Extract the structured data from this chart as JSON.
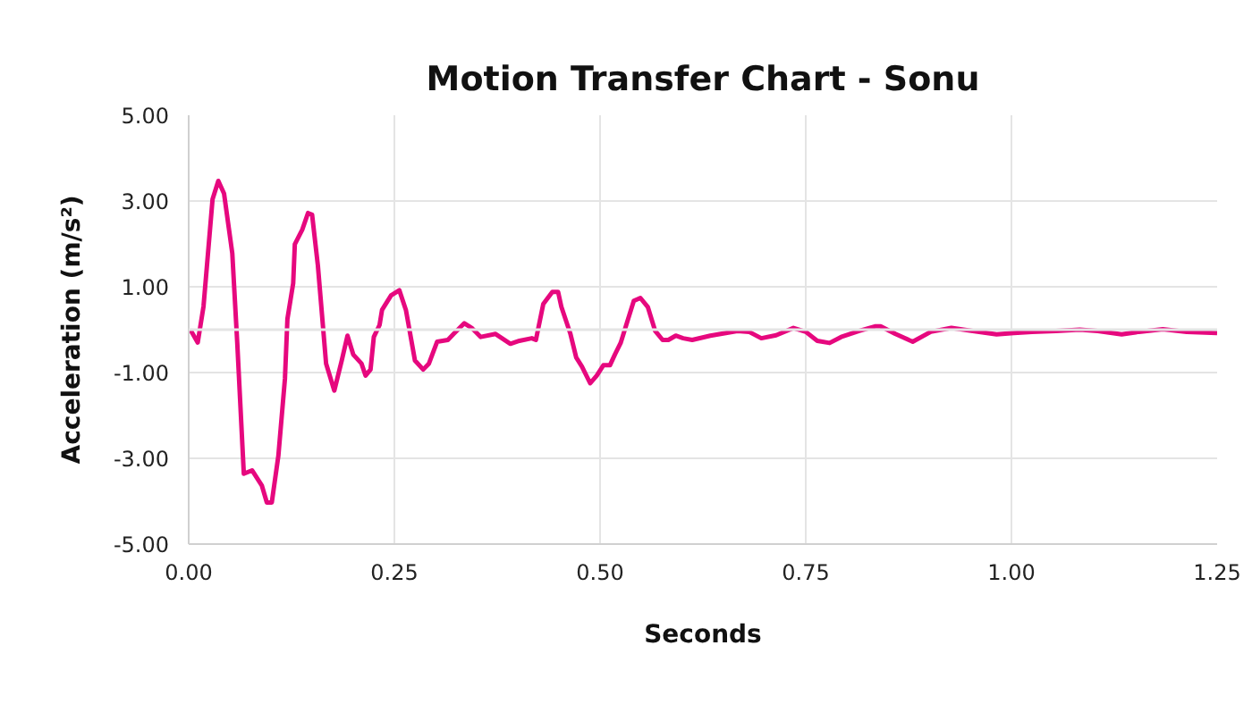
{
  "chart_data": {
    "type": "line",
    "title": "Motion Transfer Chart - Sonu",
    "xlabel": "Seconds",
    "ylabel": "Acceleration (m/s²)",
    "xlim": [
      0,
      1.25
    ],
    "ylim": [
      -5,
      5
    ],
    "xticks": [
      {
        "value": 0,
        "label": "0.00"
      },
      {
        "value": 0.25,
        "label": "0.25"
      },
      {
        "value": 0.5,
        "label": "0.50"
      },
      {
        "value": 0.75,
        "label": "0.75"
      },
      {
        "value": 1,
        "label": "1.00"
      },
      {
        "value": 1.25,
        "label": "1.25"
      }
    ],
    "yticks": [
      {
        "value": -5,
        "label": "-5.00"
      },
      {
        "value": -3,
        "label": "-3.00"
      },
      {
        "value": -1,
        "label": "-1.00"
      },
      {
        "value": 1,
        "label": "1.00"
      },
      {
        "value": 3,
        "label": "3.00"
      },
      {
        "value": 5,
        "label": "5.00"
      }
    ],
    "grid": true,
    "marker": "none",
    "line_style": "solid",
    "ref_lines": [
      {
        "axis": "y",
        "value": 0,
        "label": null,
        "color": "#e4e4e4"
      }
    ],
    "series": [
      {
        "color": "#e6087e",
        "x": [
          0.002,
          0.011,
          0.018,
          0.029,
          0.036,
          0.043,
          0.053,
          0.059,
          0.067,
          0.077,
          0.089,
          0.095,
          0.101,
          0.109,
          0.117,
          0.12,
          0.127,
          0.129,
          0.138,
          0.145,
          0.15,
          0.157,
          0.167,
          0.177,
          0.186,
          0.193,
          0.2,
          0.21,
          0.215,
          0.221,
          0.225,
          0.232,
          0.235,
          0.246,
          0.256,
          0.264,
          0.275,
          0.285,
          0.292,
          0.302,
          0.315,
          0.322,
          0.335,
          0.344,
          0.355,
          0.373,
          0.391,
          0.402,
          0.417,
          0.422,
          0.431,
          0.442,
          0.449,
          0.453,
          0.464,
          0.471,
          0.478,
          0.488,
          0.496,
          0.504,
          0.512,
          0.518,
          0.525,
          0.533,
          0.541,
          0.549,
          0.558,
          0.567,
          0.576,
          0.583,
          0.592,
          0.601,
          0.612,
          0.634,
          0.667,
          0.681,
          0.696,
          0.714,
          0.735,
          0.75,
          0.764,
          0.779,
          0.793,
          0.815,
          0.835,
          0.841,
          0.859,
          0.88,
          0.902,
          0.927,
          0.953,
          0.982,
          1.003,
          1.025,
          1.054,
          1.083,
          1.105,
          1.134,
          1.155,
          1.184,
          1.213,
          1.25
        ],
        "values": [
          0,
          -0.3,
          0.54,
          3.04,
          3.47,
          3.17,
          1.78,
          -0.3,
          -3.36,
          -3.28,
          -3.64,
          -4.03,
          -4.03,
          -2.94,
          -1.14,
          0.25,
          1.08,
          1.99,
          2.33,
          2.72,
          2.68,
          1.5,
          -0.79,
          -1.42,
          -0.72,
          -0.14,
          -0.58,
          -0.79,
          -1.07,
          -0.93,
          -0.17,
          0.11,
          0.46,
          0.8,
          0.92,
          0.46,
          -0.72,
          -0.93,
          -0.79,
          -0.28,
          -0.24,
          -0.1,
          0.15,
          0.04,
          -0.17,
          -0.1,
          -0.33,
          -0.26,
          -0.2,
          -0.24,
          0.6,
          0.88,
          0.88,
          0.53,
          -0.1,
          -0.65,
          -0.86,
          -1.25,
          -1.07,
          -0.83,
          -0.83,
          -0.58,
          -0.31,
          0.18,
          0.67,
          0.74,
          0.53,
          -0.03,
          -0.24,
          -0.24,
          -0.14,
          -0.2,
          -0.24,
          -0.14,
          -0.03,
          -0.05,
          -0.2,
          -0.13,
          0.04,
          -0.05,
          -0.26,
          -0.31,
          -0.17,
          -0.03,
          0.08,
          0.08,
          -0.1,
          -0.28,
          -0.05,
          0.04,
          -0.03,
          -0.11,
          -0.08,
          -0.05,
          -0.03,
          0,
          -0.03,
          -0.11,
          -0.05,
          0.01,
          -0.05,
          -0.08
        ]
      }
    ]
  }
}
